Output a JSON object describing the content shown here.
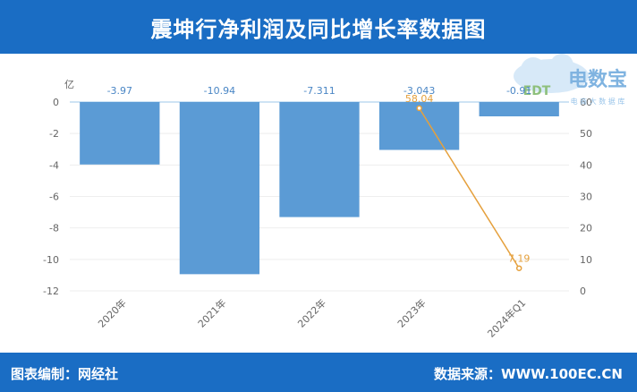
{
  "header": {
    "title": "震坤行净利润及同比增长率数据图"
  },
  "footer": {
    "left": "图表编制：网经社",
    "right": "数据来源：WWW.100EC.CN"
  },
  "watermark": {
    "logo_text": "电数宝",
    "tagline": "电 商 大 数 据 库",
    "logo_mark": "EDT"
  },
  "colors": {
    "bar": "#5b9bd5",
    "line": "#e5a03c",
    "header_bg": "#1a6dc4",
    "footer_bg": "#1a6dc4"
  },
  "chart_data": {
    "type": "bar",
    "categories": [
      "2020年",
      "2021年",
      "2022年",
      "2023年",
      "2024年Q1"
    ],
    "ylabel": "亿",
    "ylim": [
      -12,
      0
    ],
    "yticks": [
      0,
      -2,
      -4,
      -6,
      -8,
      -10,
      -12
    ],
    "y2lim": [
      0,
      60
    ],
    "y2ticks": [
      0,
      10,
      20,
      30,
      40,
      50,
      60
    ],
    "grid": true,
    "series": [
      {
        "kind": "bar",
        "axis": "left",
        "values": [
          -3.97,
          -10.94,
          -7.311,
          -3.043,
          -0.91
        ],
        "labels": [
          "-3.97",
          "-10.94",
          "-7.311",
          "-3.043",
          "-0.91"
        ]
      },
      {
        "kind": "line",
        "axis": "right",
        "points": [
          {
            "category": "2023年",
            "value": 58.04,
            "label": "58.04"
          },
          {
            "category": "2024年Q1",
            "value": 7.19,
            "label": "7.19"
          }
        ]
      }
    ]
  }
}
